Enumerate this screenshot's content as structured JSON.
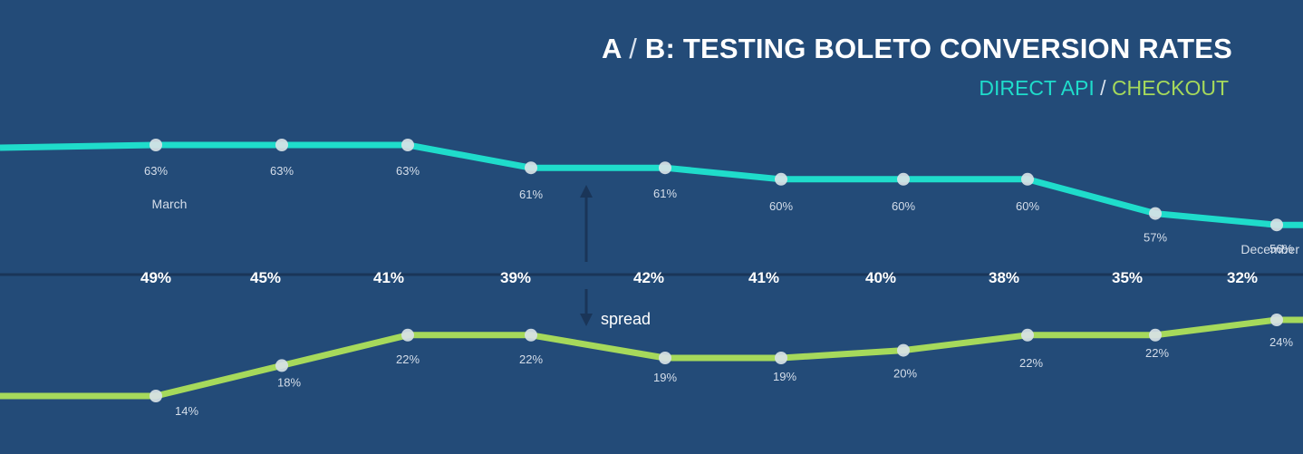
{
  "title": {
    "part1": "A",
    "slash": "/",
    "part2": "B: TESTING BOLETO CONVERSION RATES"
  },
  "subtitle": {
    "series1": "DIRECT API",
    "slash": "/",
    "series2": "CHECKOUT"
  },
  "colors": {
    "background": "#234b78",
    "direct_api": "#1fdccb",
    "checkout": "#a6d95b",
    "marker": "#d8e2e6",
    "value_label": "#d5deea",
    "spread_label": "#ffffff",
    "baseline": "#1a3558",
    "arrow": "#1a3558"
  },
  "chart_data": {
    "type": "line",
    "title": "A / B: TESTING BOLETO CONVERSION RATES",
    "x_start_label": "March",
    "x_end_label": "December",
    "series": [
      {
        "name": "DIRECT API",
        "values": [
          63,
          63,
          63,
          61,
          61,
          60,
          60,
          60,
          57,
          56
        ]
      },
      {
        "name": "CHECKOUT",
        "values": [
          14,
          18,
          22,
          22,
          19,
          19,
          20,
          22,
          22,
          24
        ]
      }
    ],
    "spread": {
      "label": "spread",
      "values": [
        49,
        45,
        41,
        39,
        42,
        41,
        40,
        38,
        35,
        32
      ]
    },
    "unit": "%"
  }
}
